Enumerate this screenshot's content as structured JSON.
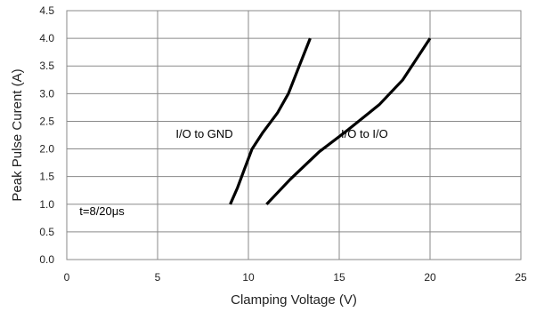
{
  "chart_data": {
    "type": "line",
    "title": "",
    "xlabel": "Clamping Voltage (V)",
    "ylabel": "Peak  Pulse Curent (A)",
    "xlim": [
      0,
      25
    ],
    "ylim": [
      0,
      4.5
    ],
    "x_ticks": [
      "0",
      "5",
      "10",
      "15",
      "20",
      "25"
    ],
    "y_ticks": [
      "0.0",
      "0.5",
      "1.0",
      "1.5",
      "2.0",
      "2.5",
      "3.0",
      "3.5",
      "4.0",
      "4.5"
    ],
    "grid": true,
    "legend": "none",
    "series": [
      {
        "name": "I/O to GND",
        "points": [
          [
            9.0,
            1.0
          ],
          [
            9.4,
            1.3
          ],
          [
            9.8,
            1.65
          ],
          [
            10.2,
            2.0
          ],
          [
            10.8,
            2.3
          ],
          [
            11.6,
            2.65
          ],
          [
            12.2,
            3.0
          ],
          [
            12.8,
            3.5
          ],
          [
            13.4,
            4.0
          ]
        ]
      },
      {
        "name": "I/O to I/O",
        "points": [
          [
            11.0,
            1.0
          ],
          [
            12.3,
            1.45
          ],
          [
            13.9,
            1.95
          ],
          [
            15.5,
            2.35
          ],
          [
            17.2,
            2.8
          ],
          [
            18.5,
            3.25
          ],
          [
            20.0,
            4.0
          ]
        ]
      }
    ],
    "annotations": [
      {
        "text": "I/O to GND",
        "x": 6.0,
        "y": 2.2
      },
      {
        "text": "I/O to I/O",
        "x": 15.1,
        "y": 2.2
      },
      {
        "text": "t=8/20μs",
        "x": 0.7,
        "y": 0.8
      }
    ],
    "color": "#000000"
  }
}
